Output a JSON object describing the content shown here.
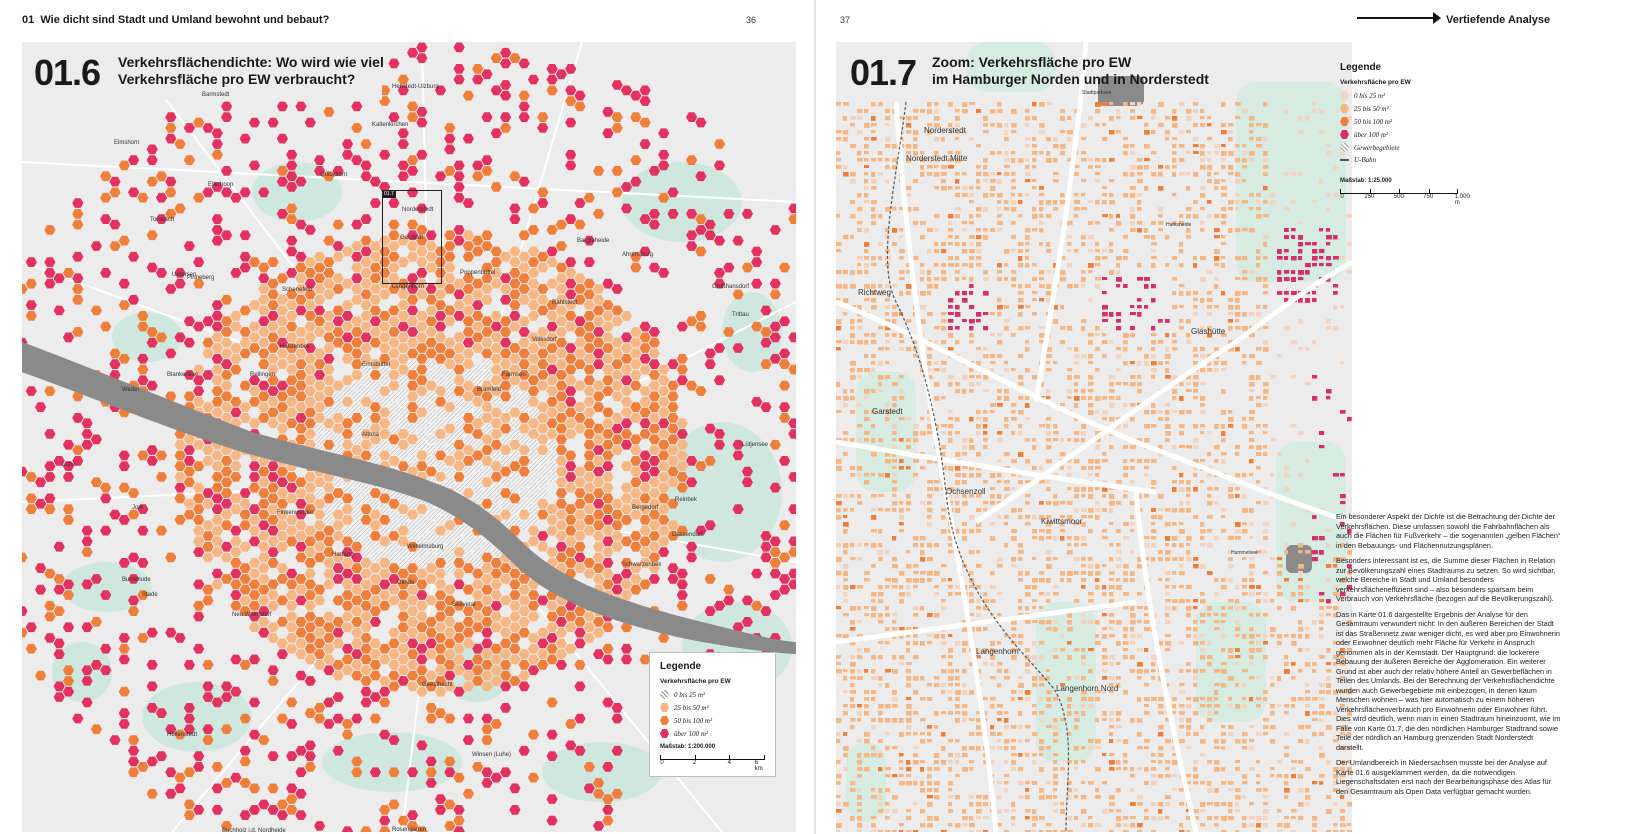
{
  "left_page": {
    "chapter_number": "01",
    "chapter_title": "Wie dicht sind Stadt und Umland bewohnt und bebaut?",
    "page_number": "36",
    "map": {
      "number": "01.6",
      "title_line1": "Verkehrsflächendichte: Wo wird wie viel",
      "title_line2": "Verkehrsfläche pro EW verbraucht?",
      "zoom_marker": "01.7",
      "places": [
        "Barmstedt",
        "Henstedt-Ulzburg",
        "Kaltenkirchen",
        "Elmshorn",
        "Quickborn",
        "Ellerhoop",
        "Norderstedt",
        "Tornesch",
        "Uetersen",
        "Garstedt",
        "Pinneberg",
        "Bargteheide",
        "Ahrensburg",
        "Großhansdorf",
        "Wedel",
        "Schenefeld",
        "Halstenbek",
        "Rellingen",
        "Langenhorn",
        "Poppenbüttel",
        "Volksdorf",
        "Rahlstedt",
        "Farmsen",
        "Bramfeld",
        "Eimsbüttel",
        "Altona",
        "Blankenese",
        "Finkenwerder",
        "Wilhelmsburg",
        "Bergedorf",
        "Reinbek",
        "Glinde",
        "Harburg",
        "Buxtehude",
        "Neu Wulmstorf",
        "Stade",
        "Jork",
        "Lühe",
        "Seevetal",
        "Winsen (Luhe)",
        "Geesthacht",
        "Rosengarten",
        "Buchholz i.d. Nordheide",
        "Hollenstedt",
        "Trittau",
        "Lütjensee",
        "Dassendorf",
        "Schwarzenbek"
      ],
      "legend": {
        "title": "Legende",
        "subtitle": "Verkehrsfläche pro EW",
        "items": [
          {
            "label": "0 bis 25 m²",
            "color": "hatch"
          },
          {
            "label": "25 bis 50 m²",
            "color": "#f6b784"
          },
          {
            "label": "50 bis 100 m²",
            "color": "#f07f3c"
          },
          {
            "label": "über 100 m²",
            "color": "#e3325f"
          }
        ],
        "scale_label": "Maßstab: 1:200.000",
        "scale_ticks": [
          "0",
          "2",
          "4",
          "6 km"
        ]
      }
    }
  },
  "right_page": {
    "page_number": "37",
    "nav_label": "Vertiefende Analyse",
    "map": {
      "number": "01.7",
      "title_line1": "Zoom: Verkehrsfläche pro EW",
      "title_line2": "im Hamburger Norden und in Norderstedt",
      "places": [
        "Norderstedt",
        "Norderstedt Mitte",
        "Richtweg",
        "Garstedt",
        "Glashütte",
        "Ochsenzoll",
        "Kiwittsmoor",
        "Langenhorn",
        "Langenhorn Nord",
        "Stadtparksee",
        "Harksheide",
        "Hummelsee"
      ],
      "legend": {
        "title": "Legende",
        "subtitle": "Verkehrsfläche pro EW",
        "items": [
          {
            "label": "0 bis 25 m²",
            "color": "#f3d3bd"
          },
          {
            "label": "25 bis 50 m²",
            "color": "#f6b784"
          },
          {
            "label": "50 bis 100 m²",
            "color": "#f07f3c"
          },
          {
            "label": "über 100 m²",
            "color": "#d6306b"
          },
          {
            "label": "Gewerbegebiete",
            "color": "hatch"
          },
          {
            "label": "U-Bahn",
            "color": "line"
          }
        ],
        "scale_label": "Maßstab: 1:25.000",
        "scale_ticks": [
          "0",
          "250",
          "500",
          "750",
          "1.000 m"
        ]
      }
    },
    "body_paragraphs": [
      "Ein besonderer Aspekt der Dichte ist die Betrachtung der Dichte der Verkehrsflächen. Diese umfassen sowohl die Fahrbahnflächen als auch die Flächen für Fußverkehr – die sogenannten „gelben Flächen“ in den Bebauungs- und Flächennutzungsplänen.",
      "Besonders interessant ist es, die Summe dieser Flächen in Relation zur Bevölkerungszahl eines Stadtraums zu setzen. So wird sichtbar, welche Bereiche in Stadt und Umland besonders verkehrsflächeneffizient sind – also besonders sparsam beim Verbrauch von Verkehrsfläche (bezogen auf die Bevölkerungszahl).",
      "Das in Karte 01.6 dargestellte Ergebnis der Analyse für den Gesamtraum verwundert nicht: In den äußeren Bereichen der Stadt ist das Straßennetz zwar weniger dicht, es wird aber pro Einwohnerin oder Einwohner deutlich mehr Fläche für Verkehr in Anspruch genommen als in der Kernstadt. Der Hauptgrund: die lockerere Bebauung der äußeren Bereiche der Agglomeration. Ein weiterer Grund ist aber auch der relativ höhere Anteil an Gewerbeflächen in Teilen des Umlands. Bei der Berechnung der Verkehrsflächendichte wurden auch Gewerbegebiete mit einbezogen, in denen kaum Menschen wohnen – was hier automatisch zu einem höheren Verkehrsflächenverbrauch pro Einwohnerin oder Einwohner führt. Dies wird deutlich, wenn man in einen Stadtraum hineinzoomt, wie im Falle von Karte 01.7, die den nördlichen Hamburger Stadtrand sowie Teile der nördlich an Hamburg grenzenden Stadt Norderstedt darstellt.",
      "Der Umlandbereich in Niedersachsen musste bei der Analyse auf Karte 01.6 ausgeklammert werden, da die notwendigen Liegenschaftsdaten erst nach der Bearbeitungsphase des Atlas für den Gesamtraum als Open Data verfügbar gemacht wurden."
    ]
  },
  "colors": {
    "hex_light": "#f6b784",
    "hex_mid": "#f07f3c",
    "hex_high": "#e3325f",
    "green": "#cfe8df",
    "water": "#8a8a8a",
    "background": "#ececec"
  }
}
